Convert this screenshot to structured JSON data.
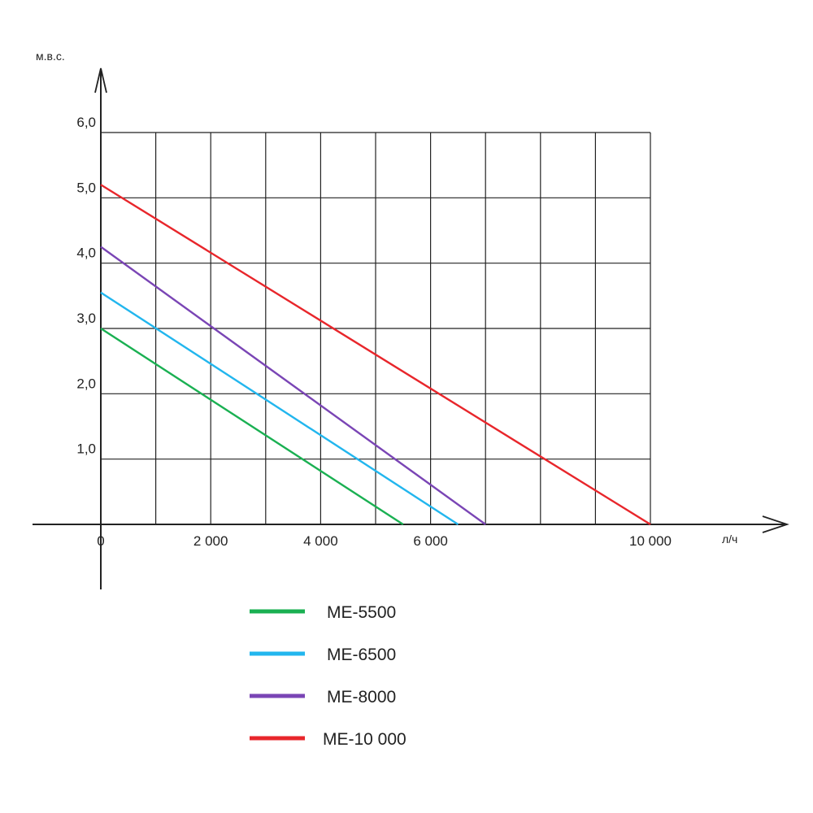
{
  "chart_data": {
    "type": "line",
    "ylabel": "м.в.с.",
    "xlabel": "л/ч",
    "xlim": [
      0,
      10000
    ],
    "ylim": [
      0,
      6
    ],
    "grid": true,
    "legend_position": "bottom",
    "x_tick_values": [
      0,
      2000,
      4000,
      6000,
      10000
    ],
    "x_tick_labels": [
      "0",
      "2 000",
      "4 000",
      "6 000",
      "10 000"
    ],
    "y_tick_values": [
      1,
      2,
      3,
      4,
      5,
      6
    ],
    "y_tick_labels": [
      "1,0",
      "2,0",
      "3,0",
      "4,0",
      "5,0",
      "6,0"
    ],
    "series": [
      {
        "name": "ME-5500",
        "color": "#1ab052",
        "x": [
          0,
          5500
        ],
        "y": [
          3.0,
          0
        ]
      },
      {
        "name": "ME-6500",
        "color": "#22b6ee",
        "x": [
          0,
          6500
        ],
        "y": [
          3.55,
          0
        ]
      },
      {
        "name": "ME-8000",
        "color": "#7a45b5",
        "x": [
          0,
          7000
        ],
        "y": [
          4.25,
          0
        ]
      },
      {
        "name": "ME-10 000",
        "color": "#e8262b",
        "x": [
          0,
          10000
        ],
        "y": [
          5.2,
          0
        ]
      }
    ]
  }
}
